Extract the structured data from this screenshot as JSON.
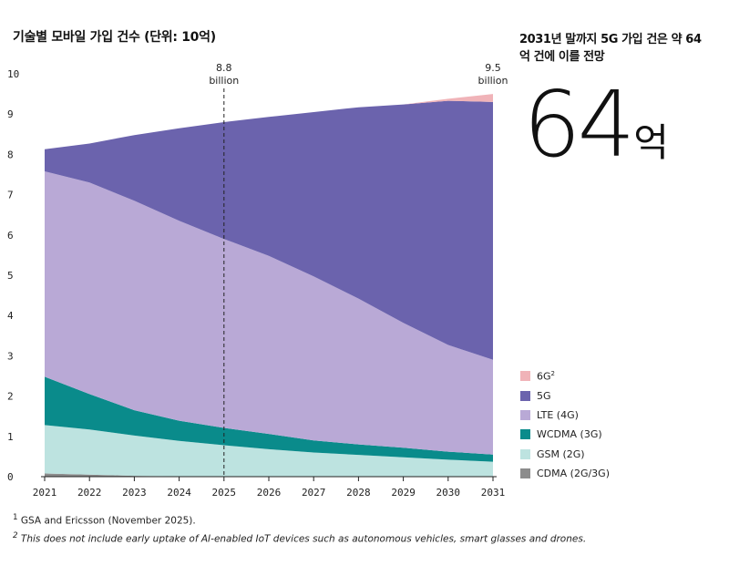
{
  "title": "기술별 모바일 가입 건수 (단위: 10억)",
  "headline": "2031년 말까지 5G 가입 건은 약 64억 건에 이를 전망",
  "big_number": {
    "value": "64",
    "unit": "억"
  },
  "footnotes": {
    "note1_marker": "1",
    "note1": "GSA and Ericsson (November 2025).",
    "note2_marker": "2",
    "note2": "This does not include early uptake of AI-enabled IoT devices such as autonomous vehicles, smart glasses and drones."
  },
  "colors": {
    "cdma": "#8c8c8c",
    "gsm": "#bde3e0",
    "wcdma": "#0a8b8b",
    "lte": "#b9a9d6",
    "5g": "#6b63ad",
    "6g": "#f0b3b8",
    "axis": "#222222",
    "dashed": "#222222"
  },
  "chart_data": {
    "type": "area",
    "stacked": true,
    "title": "기술별 모바일 가입 건수 (단위: 10억)",
    "xlabel": "",
    "ylabel": "",
    "x": [
      2021,
      2022,
      2023,
      2024,
      2025,
      2026,
      2027,
      2028,
      2029,
      2030,
      2031
    ],
    "xlim": [
      2021,
      2031
    ],
    "ylim": [
      0,
      10
    ],
    "yticks": [
      0,
      1,
      2,
      3,
      4,
      5,
      6,
      7,
      8,
      9,
      10
    ],
    "grid": false,
    "series": [
      {
        "key": "cdma",
        "name": "CDMA (2G/3G)",
        "values": [
          0.08,
          0.05,
          0.02,
          0.01,
          0.0,
          0.0,
          0.0,
          0.0,
          0.0,
          0.0,
          0.0
        ]
      },
      {
        "key": "gsm",
        "name": "GSM (2G)",
        "values": [
          1.2,
          1.12,
          1.0,
          0.88,
          0.78,
          0.68,
          0.6,
          0.54,
          0.48,
          0.42,
          0.37
        ]
      },
      {
        "key": "wcdma",
        "name": "WCDMA (3G)",
        "values": [
          1.2,
          0.88,
          0.63,
          0.5,
          0.43,
          0.38,
          0.3,
          0.26,
          0.24,
          0.2,
          0.18
        ]
      },
      {
        "key": "lte",
        "name": "LTE (4G)",
        "values": [
          5.1,
          5.25,
          5.2,
          4.96,
          4.69,
          4.42,
          4.07,
          3.62,
          3.1,
          2.65,
          2.35
        ]
      },
      {
        "key": "5g",
        "name": "5G",
        "values": [
          0.55,
          0.97,
          1.63,
          2.3,
          2.9,
          3.45,
          4.08,
          4.75,
          5.42,
          6.06,
          6.4
        ]
      },
      {
        "key": "6g",
        "name": "6G",
        "sup": "2",
        "values": [
          0.0,
          0.0,
          0.0,
          0.0,
          0.0,
          0.0,
          0.0,
          0.0,
          0.0,
          0.05,
          0.2
        ]
      }
    ],
    "annotations": [
      {
        "x": 2025,
        "value": "8.8",
        "unit": "billion",
        "dashed_line": true
      },
      {
        "x": 2031,
        "value": "9.5",
        "unit": "billion",
        "dashed_line": false
      }
    ]
  }
}
